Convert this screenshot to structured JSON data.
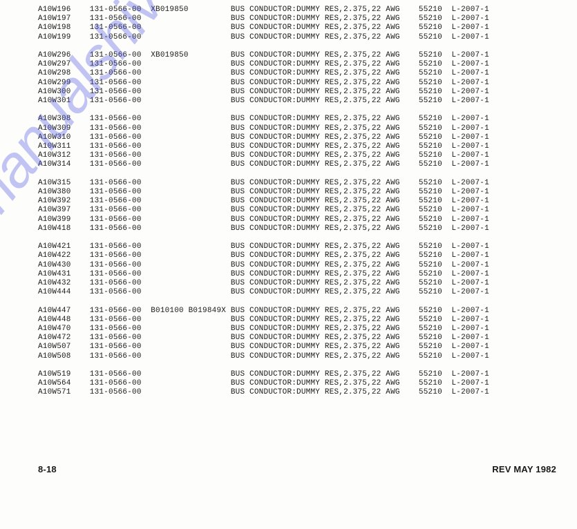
{
  "footer": {
    "left": "8-18",
    "right": "REV MAY 1982"
  },
  "common": {
    "partno": "131-0566-00",
    "desc": "BUS CONDUCTOR:DUMMY RES,2.375,22 AWG",
    "vendor": "55210",
    "doc": "L-2007-1"
  },
  "cols": {
    "ref": 0,
    "partno": 11,
    "serial": 24,
    "desc": 41,
    "vendor": 81,
    "doc": 88
  },
  "groups": [
    {
      "rows": [
        {
          "ref": "A10W196",
          "serial": "XB019850"
        },
        {
          "ref": "A10W197"
        },
        {
          "ref": "A10W198"
        },
        {
          "ref": "A10W199"
        }
      ]
    },
    {
      "rows": [
        {
          "ref": "A10W296",
          "serial": "XB019850"
        },
        {
          "ref": "A10W297"
        },
        {
          "ref": "A10W298"
        },
        {
          "ref": "A10W299"
        },
        {
          "ref": "A10W300"
        },
        {
          "ref": "A10W301"
        }
      ]
    },
    {
      "rows": [
        {
          "ref": "A10W308"
        },
        {
          "ref": "A10W309"
        },
        {
          "ref": "A10W310"
        },
        {
          "ref": "A10W311"
        },
        {
          "ref": "A10W312"
        },
        {
          "ref": "A10W314"
        }
      ]
    },
    {
      "rows": [
        {
          "ref": "A10W315"
        },
        {
          "ref": "A10W380"
        },
        {
          "ref": "A10W392"
        },
        {
          "ref": "A10W397"
        },
        {
          "ref": "A10W399"
        },
        {
          "ref": "A10W418"
        }
      ]
    },
    {
      "rows": [
        {
          "ref": "A10W421"
        },
        {
          "ref": "A10W422"
        },
        {
          "ref": "A10W430"
        },
        {
          "ref": "A10W431"
        },
        {
          "ref": "A10W432"
        },
        {
          "ref": "A10W444"
        }
      ]
    },
    {
      "rows": [
        {
          "ref": "A10W447",
          "serial": "B010100 B019849X"
        },
        {
          "ref": "A10W448"
        },
        {
          "ref": "A10W470"
        },
        {
          "ref": "A10W472"
        },
        {
          "ref": "A10W507"
        },
        {
          "ref": "A10W508"
        }
      ]
    },
    {
      "rows": [
        {
          "ref": "A10W519"
        },
        {
          "ref": "A10W564"
        },
        {
          "ref": "A10W571"
        }
      ]
    }
  ],
  "watermark": "manualshive.com"
}
